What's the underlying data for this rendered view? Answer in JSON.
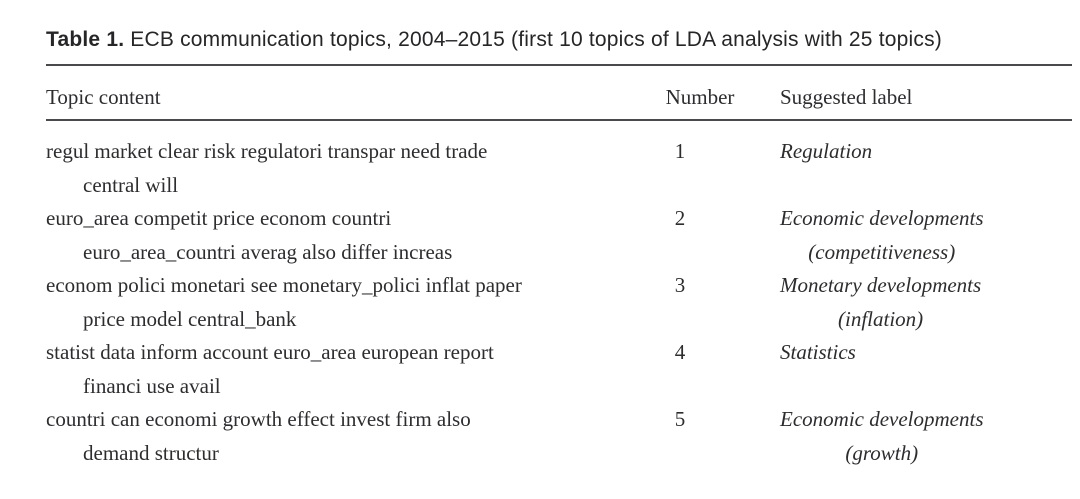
{
  "caption": {
    "prefix": "Table 1.",
    "text": " ECB communication topics, 2004–2015 (first 10 topics of LDA analysis with 25 topics)"
  },
  "header": {
    "topic": "Topic content",
    "number": "Number",
    "label": "Suggested label"
  },
  "rows": [
    {
      "topic_line1": "regul market clear risk regulatori transpar need trade",
      "topic_line2": "central will",
      "number": "1",
      "label_line1": "Regulation",
      "label_line2": ""
    },
    {
      "topic_line1": "euro_area competit price econom countri",
      "topic_line2": "euro_area_countri averag also differ increas",
      "number": "2",
      "label_line1": "Economic developments",
      "label_line2": "(competitiveness)"
    },
    {
      "topic_line1": "econom polici monetari see monetary_polici inflat paper",
      "topic_line2": "price model central_bank",
      "number": "3",
      "label_line1": "Monetary developments",
      "label_line2": "(inflation)"
    },
    {
      "topic_line1": "statist data inform account euro_area european report",
      "topic_line2": "financi use avail",
      "number": "4",
      "label_line1": "Statistics",
      "label_line2": ""
    },
    {
      "topic_line1": "countri can economi growth effect invest firm also",
      "topic_line2": "demand structur",
      "number": "5",
      "label_line1": "Economic developments",
      "label_line2": "(growth)"
    }
  ]
}
